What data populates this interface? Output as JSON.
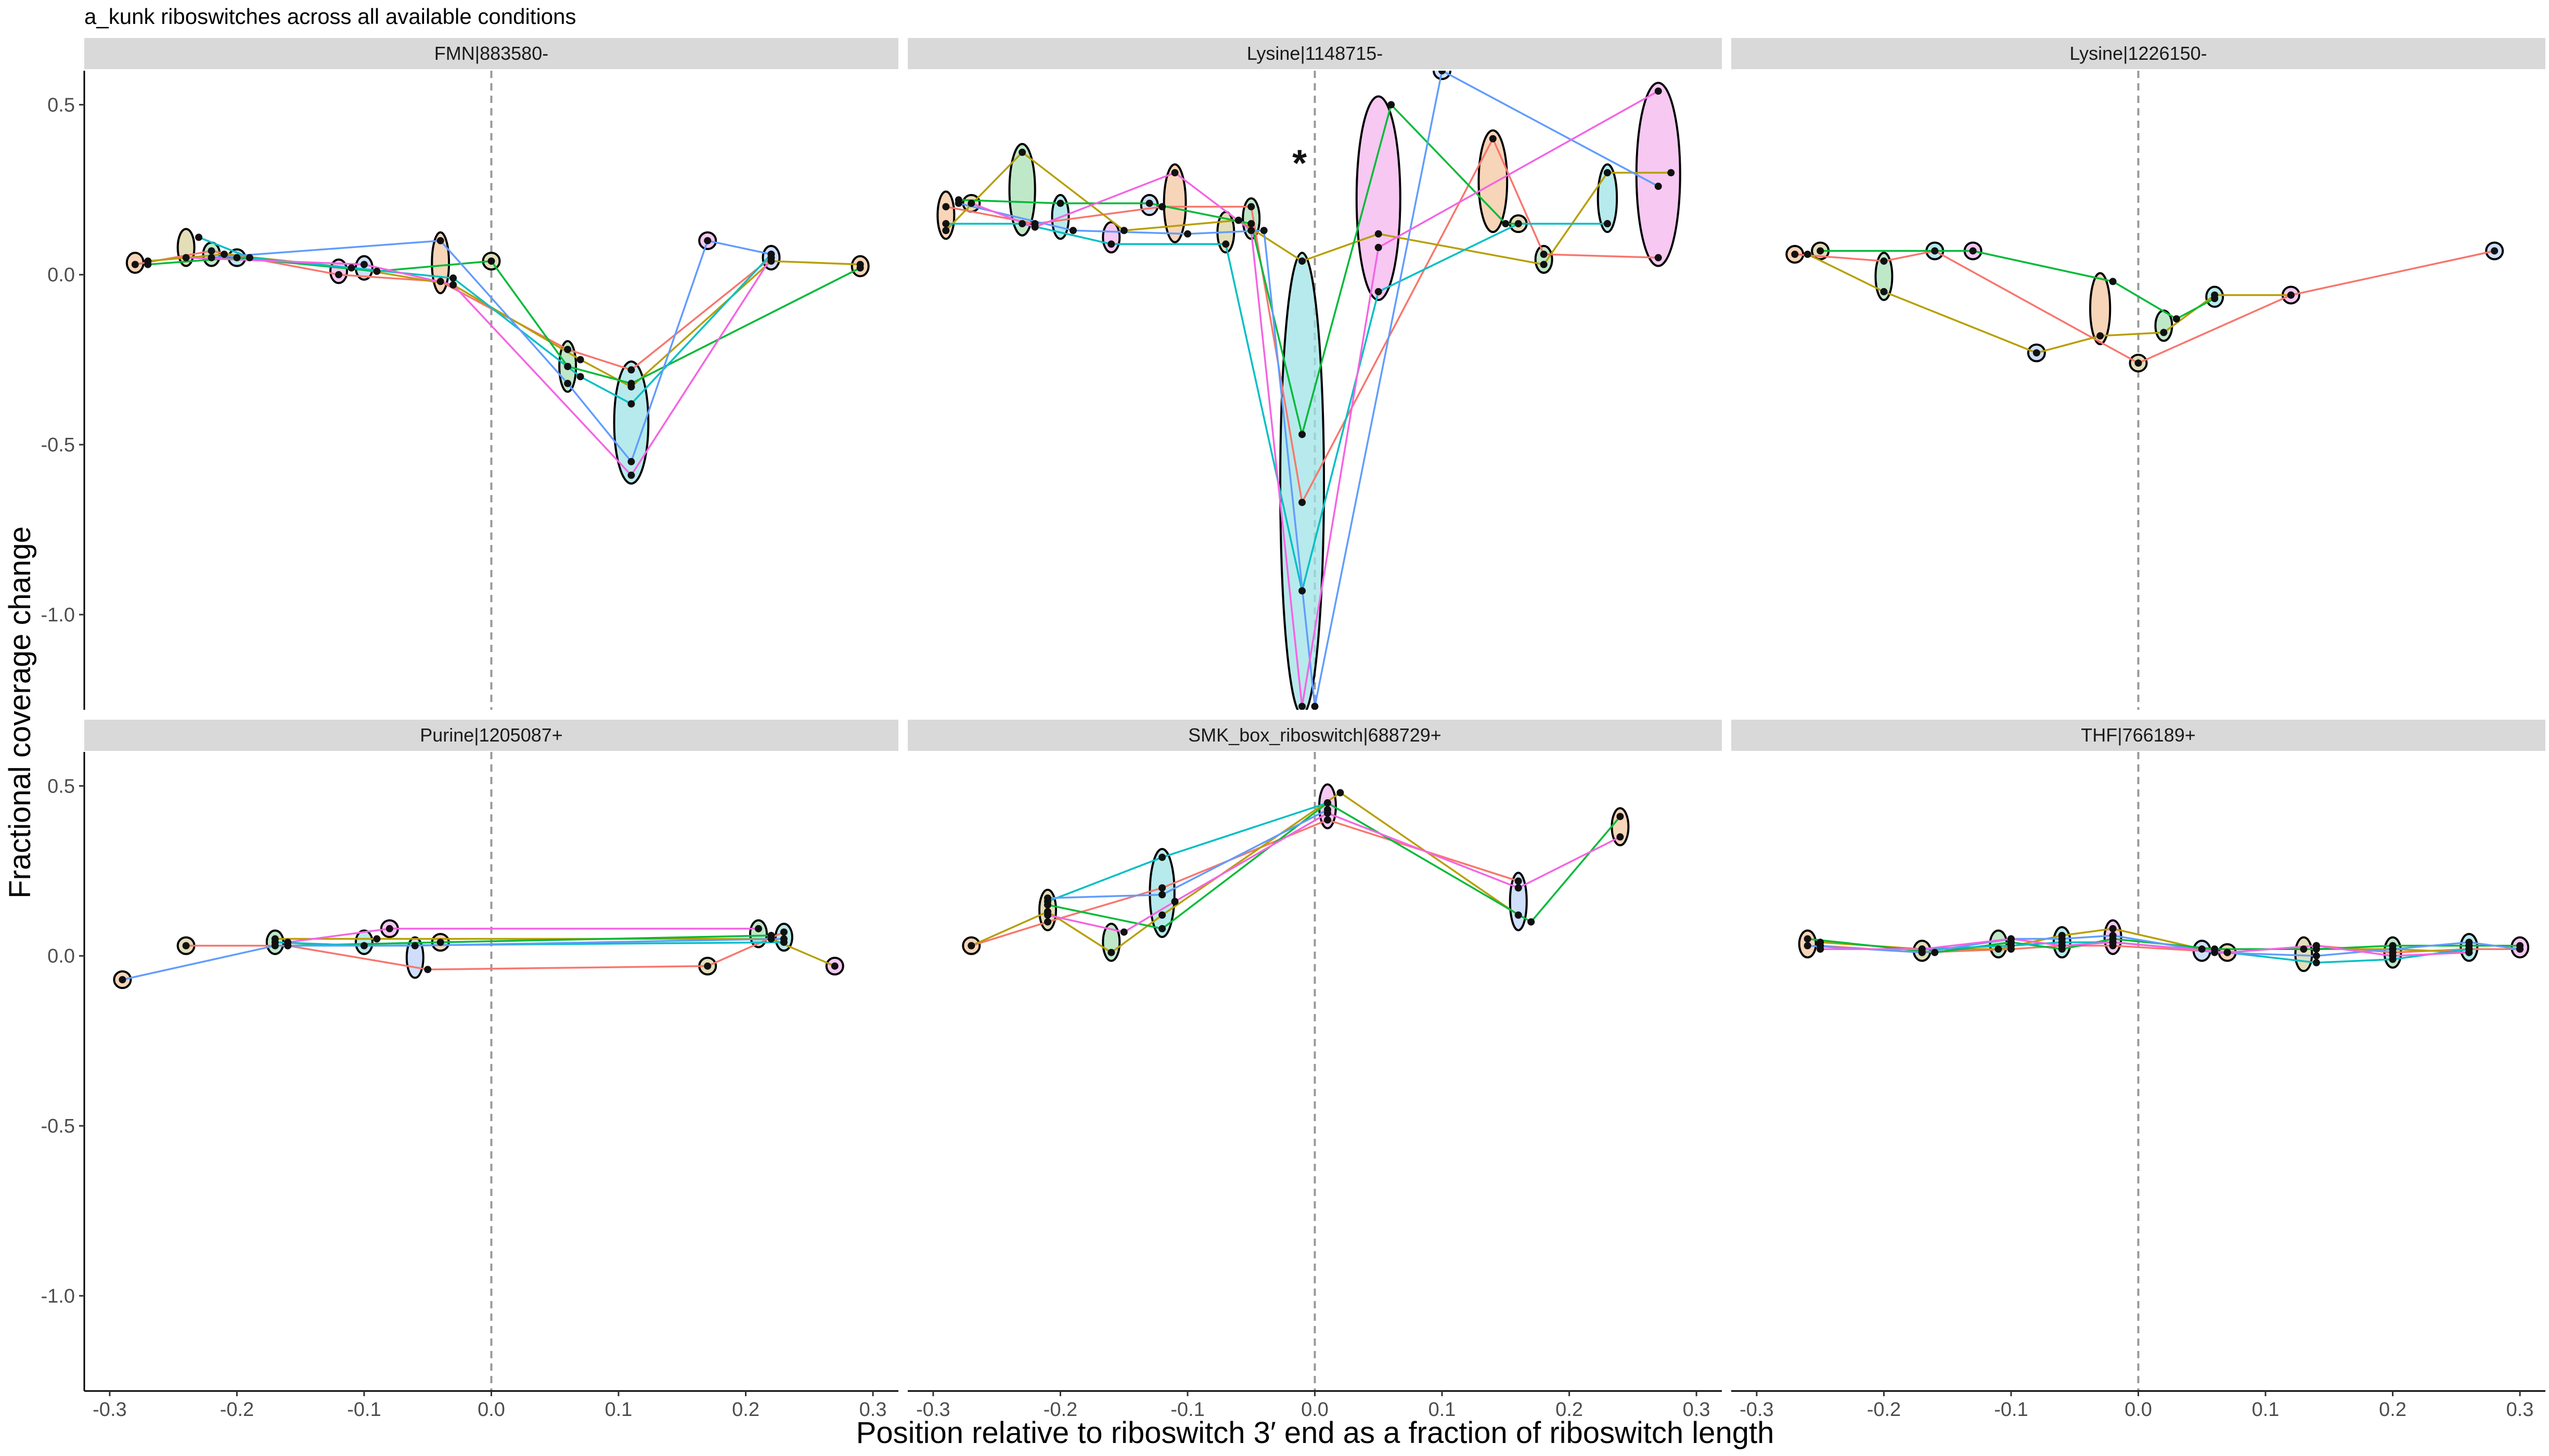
{
  "title": "a_kunk riboswitches across all available conditions",
  "chart_data": {
    "type": "scatter",
    "title": "a_kunk riboswitches across all available conditions",
    "xlabel": "Position relative to riboswitch 3′ end as a fraction of riboswitch length",
    "ylabel": "Fractional coverage change",
    "xlim": [
      -0.32,
      0.32
    ],
    "ylim": [
      -1.28,
      0.6
    ],
    "xticks": [
      -0.3,
      -0.2,
      -0.1,
      0.0,
      0.1,
      0.2,
      0.3
    ],
    "xtick_labels": [
      "-0.3",
      "-0.2",
      "-0.1",
      "0.0",
      "0.1",
      "0.2",
      "0.3"
    ],
    "yticks": [
      0.5,
      0.0,
      -0.5,
      -1.0
    ],
    "ytick_labels": [
      "0.5",
      "0.0",
      "-0.5",
      "-1.0"
    ],
    "reference_line_x": 0.0,
    "grid": false,
    "series_colors": [
      "#F8766D",
      "#B79F00",
      "#00BA38",
      "#00BFC4",
      "#619CFF",
      "#F564E3"
    ],
    "panels": [
      {
        "name": "FMN|883580-",
        "series": [
          {
            "values": [
              [
                -0.28,
                0.03
              ],
              [
                -0.22,
                0.07
              ],
              [
                -0.12,
                0.0
              ],
              [
                -0.04,
                -0.02
              ],
              [
                0.06,
                -0.22
              ],
              [
                0.11,
                -0.28
              ],
              [
                0.22,
                0.05
              ]
            ]
          },
          {
            "values": [
              [
                -0.27,
                0.04
              ],
              [
                -0.21,
                0.06
              ],
              [
                -0.11,
                0.02
              ],
              [
                -0.03,
                -0.03
              ],
              [
                0.07,
                -0.25
              ],
              [
                0.11,
                -0.33
              ],
              [
                0.22,
                0.04
              ],
              [
                0.29,
                0.03
              ]
            ]
          },
          {
            "values": [
              [
                -0.27,
                0.03
              ],
              [
                -0.2,
                0.05
              ],
              [
                -0.09,
                0.01
              ],
              [
                0.0,
                0.04
              ],
              [
                0.06,
                -0.27
              ],
              [
                0.11,
                -0.32
              ],
              [
                0.29,
                0.02
              ]
            ]
          },
          {
            "values": [
              [
                -0.23,
                0.11
              ],
              [
                -0.19,
                0.05
              ],
              [
                -0.03,
                -0.01
              ],
              [
                0.07,
                -0.3
              ],
              [
                0.11,
                -0.38
              ],
              [
                0.22,
                0.06
              ]
            ]
          },
          {
            "values": [
              [
                -0.22,
                0.05
              ],
              [
                -0.04,
                0.1
              ],
              [
                0.06,
                -0.32
              ],
              [
                0.11,
                -0.55
              ],
              [
                0.17,
                0.1
              ],
              [
                0.22,
                0.06
              ]
            ]
          },
          {
            "values": [
              [
                -0.24,
                0.05
              ],
              [
                -0.1,
                0.03
              ],
              [
                -0.03,
                -0.03
              ],
              [
                0.11,
                -0.59
              ],
              [
                0.22,
                0.05
              ]
            ]
          }
        ]
      },
      {
        "name": "Lysine|1148715-",
        "annotation": "*",
        "series": [
          {
            "values": [
              [
                -0.29,
                0.2
              ],
              [
                -0.22,
                0.15
              ],
              [
                -0.12,
                0.2
              ],
              [
                -0.05,
                0.2
              ],
              [
                -0.01,
                -0.67
              ],
              [
                0.14,
                0.4
              ],
              [
                0.18,
                0.06
              ],
              [
                0.27,
                0.05
              ]
            ]
          },
          {
            "values": [
              [
                -0.29,
                0.13
              ],
              [
                -0.23,
                0.36
              ],
              [
                -0.15,
                0.13
              ],
              [
                -0.06,
                0.16
              ],
              [
                -0.01,
                0.04
              ],
              [
                0.05,
                0.12
              ],
              [
                0.18,
                0.03
              ],
              [
                0.23,
                0.3
              ],
              [
                0.28,
                0.3
              ]
            ]
          },
          {
            "values": [
              [
                -0.28,
                0.22
              ],
              [
                -0.2,
                0.21
              ],
              [
                -0.13,
                0.21
              ],
              [
                -0.05,
                0.15
              ],
              [
                -0.01,
                -0.47
              ],
              [
                0.06,
                0.5
              ],
              [
                0.15,
                0.15
              ],
              [
                0.23,
                0.15
              ]
            ]
          },
          {
            "values": [
              [
                -0.29,
                0.15
              ],
              [
                -0.23,
                0.15
              ],
              [
                -0.16,
                0.09
              ],
              [
                -0.07,
                0.09
              ],
              [
                -0.01,
                -0.93
              ],
              [
                0.05,
                -0.05
              ],
              [
                0.16,
                0.15
              ],
              [
                0.23,
                0.15
              ]
            ]
          },
          {
            "values": [
              [
                -0.28,
                0.21
              ],
              [
                -0.19,
                0.13
              ],
              [
                -0.1,
                0.12
              ],
              [
                -0.04,
                0.13
              ],
              [
                0.0,
                -1.27
              ],
              [
                0.1,
                0.6
              ],
              [
                0.27,
                0.26
              ]
            ]
          },
          {
            "values": [
              [
                -0.27,
                0.21
              ],
              [
                -0.22,
                0.14
              ],
              [
                -0.11,
                0.3
              ],
              [
                -0.05,
                0.13
              ],
              [
                -0.01,
                -1.27
              ],
              [
                0.05,
                0.08
              ],
              [
                0.27,
                0.54
              ]
            ]
          }
        ]
      },
      {
        "name": "Lysine|1226150-",
        "series": [
          {
            "values": [
              [
                -0.27,
                0.06
              ],
              [
                -0.2,
                0.04
              ],
              [
                -0.16,
                0.07
              ],
              [
                0.0,
                -0.26
              ],
              [
                0.12,
                -0.06
              ],
              [
                0.28,
                0.07
              ]
            ]
          },
          {
            "values": [
              [
                -0.26,
                0.06
              ],
              [
                -0.2,
                -0.05
              ],
              [
                -0.08,
                -0.23
              ],
              [
                -0.03,
                -0.18
              ],
              [
                0.02,
                -0.17
              ],
              [
                0.06,
                -0.06
              ],
              [
                0.12,
                -0.06
              ]
            ]
          },
          {
            "values": [
              [
                -0.25,
                0.07
              ],
              [
                -0.13,
                0.07
              ],
              [
                -0.02,
                -0.02
              ],
              [
                0.03,
                -0.13
              ],
              [
                0.06,
                -0.07
              ]
            ]
          }
        ]
      },
      {
        "name": "Purine|1205087+",
        "series": [
          {
            "values": [
              [
                -0.24,
                0.03
              ],
              [
                -0.16,
                0.03
              ],
              [
                -0.05,
                -0.04
              ],
              [
                0.17,
                -0.03
              ],
              [
                0.23,
                0.07
              ]
            ]
          },
          {
            "values": [
              [
                -0.17,
                0.05
              ],
              [
                -0.09,
                0.05
              ],
              [
                0.22,
                0.05
              ],
              [
                0.27,
                -0.03
              ]
            ]
          },
          {
            "values": [
              [
                -0.16,
                0.03
              ],
              [
                -0.04,
                0.04
              ],
              [
                0.22,
                0.06
              ]
            ]
          },
          {
            "values": [
              [
                -0.17,
                0.04
              ],
              [
                -0.1,
                0.03
              ],
              [
                0.23,
                0.04
              ]
            ]
          },
          {
            "values": [
              [
                -0.29,
                -0.07
              ],
              [
                -0.17,
                0.03
              ],
              [
                -0.06,
                0.03
              ],
              [
                0.23,
                0.05
              ]
            ]
          },
          {
            "values": [
              [
                -0.16,
                0.04
              ],
              [
                -0.08,
                0.08
              ],
              [
                0.21,
                0.08
              ]
            ]
          }
        ]
      },
      {
        "name": "SMK_box_riboswitch|688729+",
        "series": [
          {
            "values": [
              [
                -0.27,
                0.03
              ],
              [
                -0.21,
                0.1
              ],
              [
                -0.12,
                0.2
              ],
              [
                0.01,
                0.4
              ],
              [
                0.16,
                0.22
              ]
            ]
          },
          {
            "values": [
              [
                -0.27,
                0.03
              ],
              [
                -0.21,
                0.13
              ],
              [
                -0.16,
                0.01
              ],
              [
                -0.12,
                0.12
              ],
              [
                0.02,
                0.48
              ],
              [
                0.16,
                0.12
              ]
            ]
          },
          {
            "values": [
              [
                -0.21,
                0.15
              ],
              [
                -0.12,
                0.08
              ],
              [
                0.01,
                0.45
              ],
              [
                0.17,
                0.1
              ],
              [
                0.24,
                0.41
              ]
            ]
          },
          {
            "values": [
              [
                -0.21,
                0.16
              ],
              [
                -0.12,
                0.29
              ],
              [
                0.01,
                0.45
              ]
            ]
          },
          {
            "values": [
              [
                -0.21,
                0.17
              ],
              [
                -0.12,
                0.18
              ],
              [
                0.01,
                0.43
              ]
            ]
          },
          {
            "values": [
              [
                -0.21,
                0.12
              ],
              [
                -0.15,
                0.07
              ],
              [
                -0.11,
                0.16
              ],
              [
                0.01,
                0.42
              ],
              [
                0.16,
                0.2
              ],
              [
                0.24,
                0.35
              ]
            ]
          }
        ]
      },
      {
        "name": "THF|766189+",
        "series": [
          {
            "values": [
              [
                -0.25,
                0.03
              ],
              [
                -0.17,
                0.01
              ],
              [
                -0.1,
                0.02
              ],
              [
                -0.06,
                0.03
              ],
              [
                -0.02,
                0.03
              ],
              [
                0.07,
                0.01
              ],
              [
                0.14,
                0.03
              ],
              [
                0.2,
                0.01
              ],
              [
                0.26,
                0.02
              ],
              [
                0.3,
                0.02
              ]
            ]
          },
          {
            "values": [
              [
                -0.25,
                0.04
              ],
              [
                -0.17,
                0.02
              ],
              [
                -0.11,
                0.02
              ],
              [
                -0.06,
                0.06
              ],
              [
                -0.02,
                0.08
              ],
              [
                0.05,
                0.02
              ],
              [
                0.13,
                0.02
              ],
              [
                0.2,
                0.02
              ],
              [
                0.26,
                0.01
              ]
            ]
          },
          {
            "values": [
              [
                -0.26,
                0.05
              ],
              [
                -0.16,
                0.01
              ],
              [
                -0.1,
                0.04
              ],
              [
                -0.06,
                0.02
              ],
              [
                -0.02,
                0.05
              ],
              [
                0.06,
                0.02
              ],
              [
                0.14,
                0.02
              ],
              [
                0.2,
                0.03
              ],
              [
                0.26,
                0.03
              ],
              [
                0.3,
                0.03
              ]
            ]
          },
          {
            "values": [
              [
                -0.25,
                0.02
              ],
              [
                -0.17,
                0.02
              ],
              [
                -0.1,
                0.03
              ],
              [
                -0.06,
                0.04
              ],
              [
                -0.02,
                0.04
              ],
              [
                0.07,
                0.01
              ],
              [
                0.14,
                -0.02
              ],
              [
                0.2,
                -0.01
              ],
              [
                0.26,
                0.02
              ]
            ]
          },
          {
            "values": [
              [
                -0.26,
                0.03
              ],
              [
                -0.17,
                0.01
              ],
              [
                -0.1,
                0.05
              ],
              [
                -0.06,
                0.05
              ],
              [
                -0.02,
                0.06
              ],
              [
                0.06,
                0.01
              ],
              [
                0.14,
                0.0
              ],
              [
                0.2,
                0.02
              ],
              [
                0.26,
                0.04
              ],
              [
                0.3,
                0.02
              ]
            ]
          },
          {
            "values": [
              [
                -0.25,
                0.02
              ],
              [
                -0.17,
                0.02
              ],
              [
                -0.1,
                0.05
              ],
              [
                -0.06,
                0.03
              ],
              [
                -0.02,
                0.04
              ],
              [
                0.07,
                0.01
              ],
              [
                0.14,
                0.03
              ],
              [
                0.2,
                0.0
              ],
              [
                0.26,
                0.01
              ]
            ]
          }
        ]
      }
    ]
  }
}
